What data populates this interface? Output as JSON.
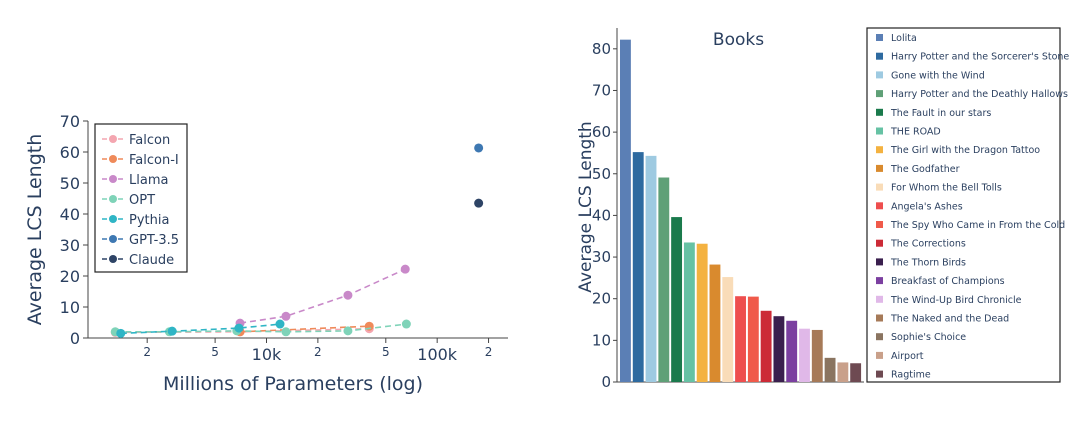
{
  "chart_data": [
    {
      "type": "line",
      "xscale": "log",
      "xlabel": "Millions of Parameters (log)",
      "ylabel": "Average LCS Length",
      "xlim": [
        900,
        260000
      ],
      "ylim": [
        0,
        70
      ],
      "yticks": [
        0,
        10,
        20,
        30,
        40,
        50,
        60,
        70
      ],
      "xticks": [
        {
          "value": 2000,
          "label": "2"
        },
        {
          "value": 5000,
          "label": "5"
        },
        {
          "value": 10000,
          "label": "10k"
        },
        {
          "value": 20000,
          "label": "2"
        },
        {
          "value": 50000,
          "label": "5"
        },
        {
          "value": 100000,
          "label": "100k"
        },
        {
          "value": 200000,
          "label": "2"
        }
      ],
      "legend": "top-left",
      "grid": false,
      "series": [
        {
          "name": "Falcon",
          "color": "#f4a6b0",
          "style": "dashed",
          "x": [
            1300,
            7000,
            40000
          ],
          "y": [
            1.8,
            2.0,
            3.0
          ]
        },
        {
          "name": "Falcon-I",
          "color": "#ef8a5a",
          "style": "dashed",
          "x": [
            7000,
            40000
          ],
          "y": [
            2.0,
            3.8
          ]
        },
        {
          "name": "Llama",
          "color": "#c989c9",
          "style": "dashed",
          "x": [
            7000,
            13000,
            30000,
            65000
          ],
          "y": [
            4.8,
            7.0,
            13.8,
            22.2
          ]
        },
        {
          "name": "OPT",
          "color": "#7fd3b8",
          "style": "dashed",
          "x": [
            1300,
            2700,
            6700,
            13000,
            30000,
            66000
          ],
          "y": [
            2.0,
            2.0,
            2.3,
            2.0,
            2.3,
            4.5
          ]
        },
        {
          "name": "Pythia",
          "color": "#2fb5c5",
          "style": "dashed",
          "x": [
            1400,
            2800,
            6900,
            12000
          ],
          "y": [
            1.5,
            2.2,
            3.2,
            4.5
          ]
        },
        {
          "name": "GPT-3.5",
          "color": "#3e78b2",
          "style": "dashed",
          "x": [
            175000
          ],
          "y": [
            61.3
          ]
        },
        {
          "name": "Claude",
          "color": "#2e4466",
          "style": "dashed",
          "x": [
            175000
          ],
          "y": [
            43.5
          ]
        }
      ]
    },
    {
      "type": "bar",
      "title": "Books",
      "ylabel": "Average LCS Length",
      "xlabel": "",
      "ylim": [
        0,
        85
      ],
      "yticks": [
        0,
        10,
        20,
        30,
        40,
        50,
        60,
        70,
        80
      ],
      "legend": "right",
      "categories": [
        "Lolita",
        "Harry Potter and the Sorcerer's Stone",
        "Gone with the Wind",
        "Harry Potter and the Deathly Hallows",
        "The Fault in our stars",
        "THE ROAD",
        "The Girl with the Dragon Tattoo",
        "The Godfather",
        "For Whom the Bell Tolls",
        "Angela's Ashes",
        "The Spy Who Came in From the Cold",
        "The Corrections",
        "The Thorn Birds",
        "Breakfast of Champions",
        "The Wind-Up Bird Chronicle",
        "The Naked and the Dead",
        "Sophie's Choice",
        "Airport",
        "Ragtime"
      ],
      "values": [
        82.2,
        55.2,
        54.3,
        49.1,
        39.6,
        33.5,
        33.2,
        28.2,
        25.2,
        20.6,
        20.5,
        17.1,
        15.8,
        14.7,
        12.8,
        12.5,
        5.8,
        4.7,
        4.5
      ],
      "colors": [
        "#5b7fb5",
        "#2e6aa0",
        "#9ecae1",
        "#5fa077",
        "#1a7a4c",
        "#66c2a4",
        "#f4b240",
        "#d98a2e",
        "#f9dcb8",
        "#ee4e4e",
        "#f05a4a",
        "#cc2a36",
        "#3a1f4e",
        "#7b3fa0",
        "#e0b8e8",
        "#a67a58",
        "#8a7460",
        "#c9a08a",
        "#6e4a52"
      ]
    }
  ]
}
